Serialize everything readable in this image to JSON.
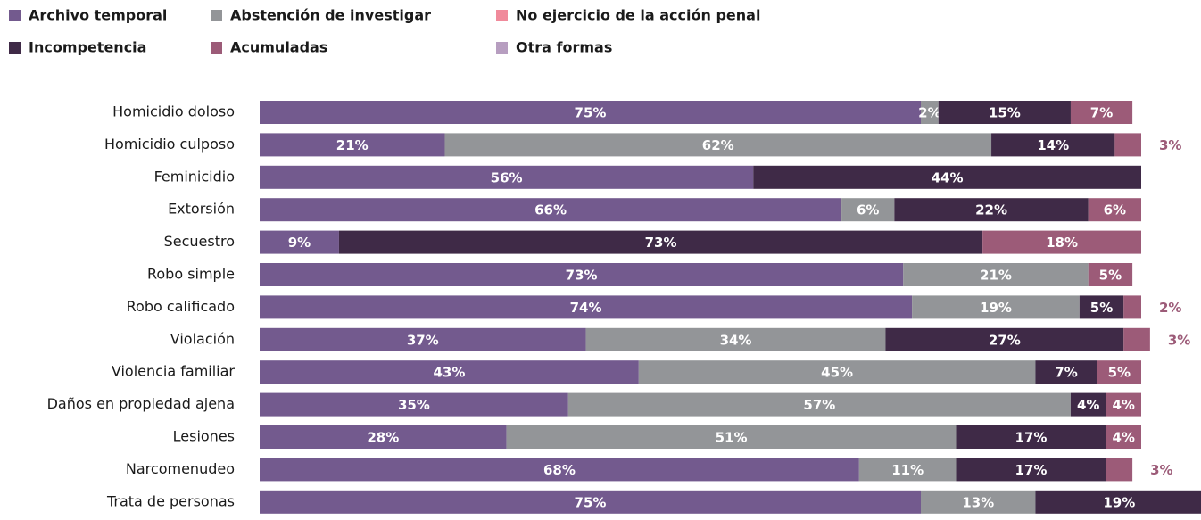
{
  "chart_data": {
    "type": "bar",
    "orientation": "horizontal",
    "stacked": true,
    "categories": [
      "Homicidio doloso",
      "Homicidio culposo",
      "Feminicidio",
      "Extorsión",
      "Secuestro",
      "Robo simple",
      "Robo calificado",
      "Violación",
      "Violencia familiar",
      "Daños en propiedad ajena",
      "Lesiones",
      "Narcomenudeo",
      "Trata de personas"
    ],
    "series": [
      {
        "name": "Archivo temporal",
        "color": "#735a8e",
        "values": [
          75,
          21,
          56,
          66,
          9,
          73,
          74,
          37,
          43,
          35,
          28,
          68,
          75
        ],
        "value_labels": [
          "75%",
          "21%",
          "56%",
          "66%",
          "9%",
          "73%",
          "74%",
          "37%",
          "43%",
          "35%",
          "28%",
          "68%",
          "75%"
        ]
      },
      {
        "name": "Abstención de investigar",
        "color": "#939598",
        "values": [
          2,
          62,
          null,
          6,
          null,
          21,
          19,
          34,
          45,
          57,
          51,
          11,
          13
        ],
        "value_labels": [
          "2%",
          "62%",
          null,
          "6%",
          null,
          "21%",
          "19%",
          "34%",
          "45%",
          "57%",
          "51%",
          "11%",
          "13%"
        ]
      },
      {
        "name": "No ejercicio de la acción penal",
        "color": "#f08a9b",
        "values": [
          null,
          null,
          null,
          null,
          null,
          null,
          null,
          null,
          null,
          null,
          null,
          null,
          null
        ]
      },
      {
        "name": "Incompetencia",
        "color": "#3f2a47",
        "values": [
          15,
          14,
          44,
          22,
          73,
          null,
          5,
          27,
          7,
          4,
          17,
          17,
          19
        ],
        "value_labels": [
          "15%",
          "14%",
          "44%",
          "22%",
          "73%",
          null,
          "5%",
          "27%",
          "7%",
          "4%",
          "17%",
          "17%",
          "19%"
        ]
      },
      {
        "name": "Acumuladas",
        "color": "#9c5b78",
        "values": [
          7,
          3,
          null,
          6,
          18,
          5,
          2,
          3,
          5,
          4,
          4,
          3,
          null
        ],
        "value_labels": [
          "7%",
          "3%",
          null,
          "6%",
          "18%",
          "5%",
          "2%",
          "3%",
          "5%",
          "4%",
          "4%",
          "3%",
          null
        ]
      },
      {
        "name": "Otra formas",
        "color": "#b79ec0",
        "values": [
          null,
          null,
          null,
          null,
          null,
          null,
          null,
          null,
          null,
          null,
          null,
          null,
          null
        ]
      }
    ]
  }
}
